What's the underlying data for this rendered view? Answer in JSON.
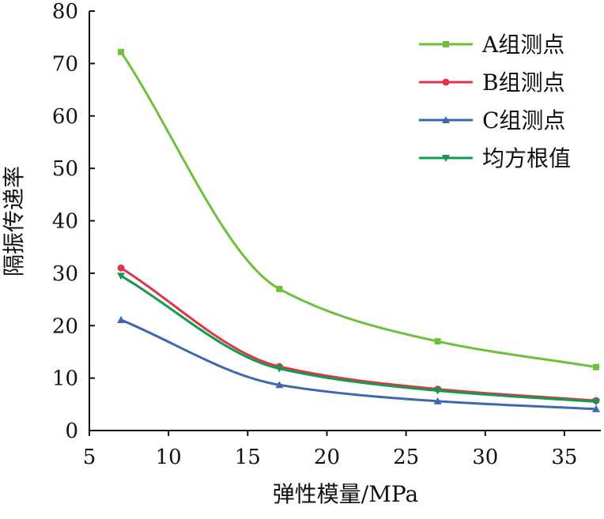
{
  "chart_data": {
    "type": "line",
    "title": "",
    "xlabel": "弹性模量/MPa",
    "ylabel": "隔振传递率",
    "xlim": [
      5,
      38
    ],
    "ylim": [
      0,
      80
    ],
    "xticks": [
      5,
      10,
      15,
      20,
      25,
      30,
      35
    ],
    "yticks": [
      0,
      10,
      20,
      30,
      40,
      50,
      60,
      70,
      80
    ],
    "grid": false,
    "legend_position": "top-right",
    "x": [
      7,
      17,
      27,
      37
    ],
    "series": [
      {
        "name": "A组测点",
        "color": "#6cc13a",
        "marker": "square",
        "values": [
          72.2,
          27.0,
          17.0,
          12.1
        ]
      },
      {
        "name": "B组测点",
        "color": "#e03448",
        "marker": "circle",
        "values": [
          31.0,
          12.2,
          7.9,
          5.7
        ]
      },
      {
        "name": "C组测点",
        "color": "#3f67b1",
        "marker": "triangle-up",
        "values": [
          21.1,
          8.7,
          5.6,
          4.1
        ]
      },
      {
        "name": "均方根值",
        "color": "#129a4e",
        "marker": "triangle-down",
        "values": [
          29.5,
          11.8,
          7.6,
          5.5
        ]
      }
    ]
  }
}
